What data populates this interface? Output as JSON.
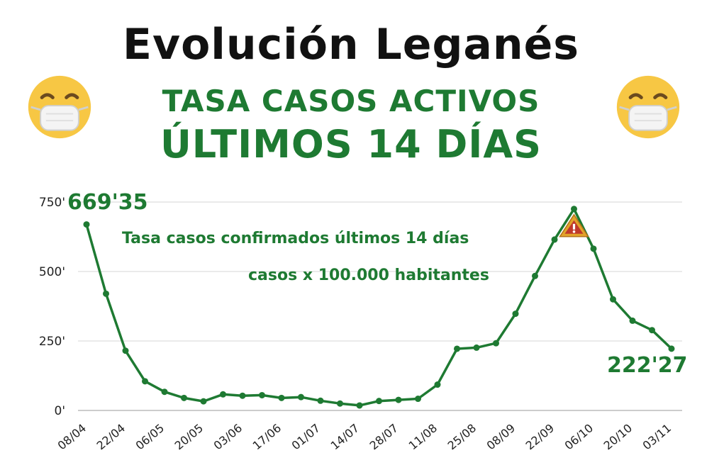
{
  "header": {
    "title": "Evolución Leganés",
    "subtitle_line1": "TASA CASOS ACTIVOS",
    "subtitle_line2": "ÚLTIMOS 14 DÍAS"
  },
  "icons": {
    "left": "face-with-medical-mask-icon",
    "right": "face-with-medical-mask-icon",
    "peak_marker": "warning-triangle-icon"
  },
  "colors": {
    "line": "#1e7a32",
    "text_green": "#1e7a32",
    "grid": "#d6d6d6",
    "warning_fill": "#e2a42a",
    "warning_mark": "#c0392b"
  },
  "chart_data": {
    "type": "line",
    "series_labels": [
      "Tasa casos confirmados últimos 14 días",
      "casos x 100.000 habitantes"
    ],
    "y_ticks": [
      "0'",
      "250'",
      "500'",
      "750'"
    ],
    "y_tick_values": [
      0,
      250,
      500,
      750
    ],
    "ylim": [
      0,
      750
    ],
    "x_tick_labels": [
      "08/04",
      "22/04",
      "06/05",
      "20/05",
      "03/06",
      "17/06",
      "01/07",
      "14/07",
      "28/07",
      "11/08",
      "25/08",
      "08/09",
      "22/09",
      "06/10",
      "20/10",
      "03/11"
    ],
    "values": [
      669.35,
      420,
      215,
      105,
      67,
      45,
      33,
      58,
      53,
      55,
      45,
      48,
      35,
      25,
      18,
      34,
      38,
      42,
      93,
      222,
      226,
      242,
      348,
      484,
      615,
      725,
      582,
      400,
      323,
      289,
      222.27
    ],
    "annotations": {
      "start": "669'35",
      "end": "222'27"
    },
    "grid": true,
    "peak_marker_index": 25
  }
}
